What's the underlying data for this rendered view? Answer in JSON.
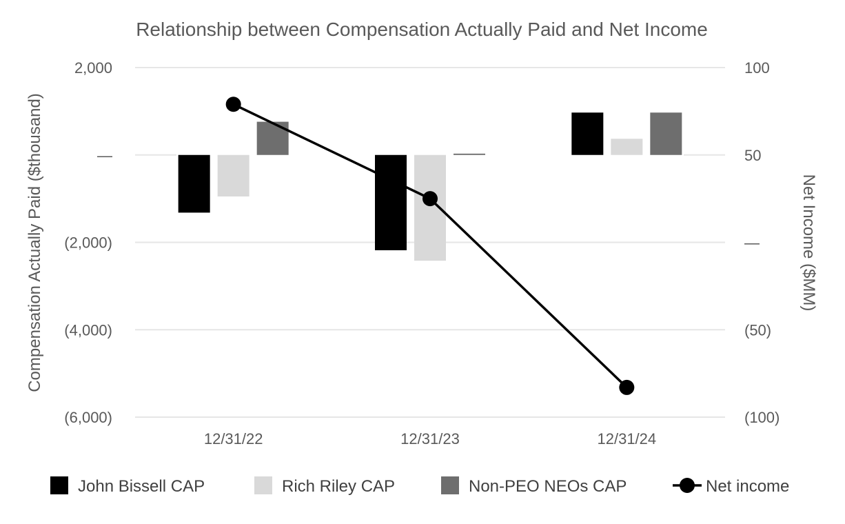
{
  "chart_data": {
    "type": "bar",
    "title": "Relationship between Compensation Actually Paid and Net Income",
    "categories": [
      "12/31/22",
      "12/31/23",
      "12/31/24"
    ],
    "ylabel": "Compensation Actually Paid ($thousand)",
    "y2label": "Net Income ($MM)",
    "ylim": [
      -6000,
      2000
    ],
    "y2lim": [
      -100,
      100
    ],
    "yticks": [
      {
        "value": 2000,
        "label": "2,000"
      },
      {
        "value": 0,
        "label": "—"
      },
      {
        "value": -2000,
        "label": "(2,000)"
      },
      {
        "value": -4000,
        "label": "(4,000)"
      },
      {
        "value": -6000,
        "label": "(6,000)"
      }
    ],
    "y2ticks": [
      {
        "value": 100,
        "label": "100"
      },
      {
        "value": 50,
        "label": "50"
      },
      {
        "value": 0,
        "label": "—"
      },
      {
        "value": -50,
        "label": "(50)"
      },
      {
        "value": -100,
        "label": "(100)"
      }
    ],
    "series": [
      {
        "name": "John Bissell CAP",
        "type": "bar",
        "axis": "left",
        "color": "#000000",
        "values": [
          -1320,
          -2180,
          970
        ]
      },
      {
        "name": "Rich Riley CAP",
        "type": "bar",
        "axis": "left",
        "color": "#d9d9d9",
        "values": [
          -950,
          -2420,
          370
        ]
      },
      {
        "name": "Non-PEO NEOs CAP",
        "type": "bar",
        "axis": "left",
        "color": "#6e6e6e",
        "values": [
          760,
          30,
          970
        ]
      },
      {
        "name": "Net income",
        "type": "line",
        "axis": "right",
        "color": "#000000",
        "values": [
          79,
          25,
          -83
        ]
      }
    ],
    "legend_position": "bottom",
    "grid": true
  }
}
